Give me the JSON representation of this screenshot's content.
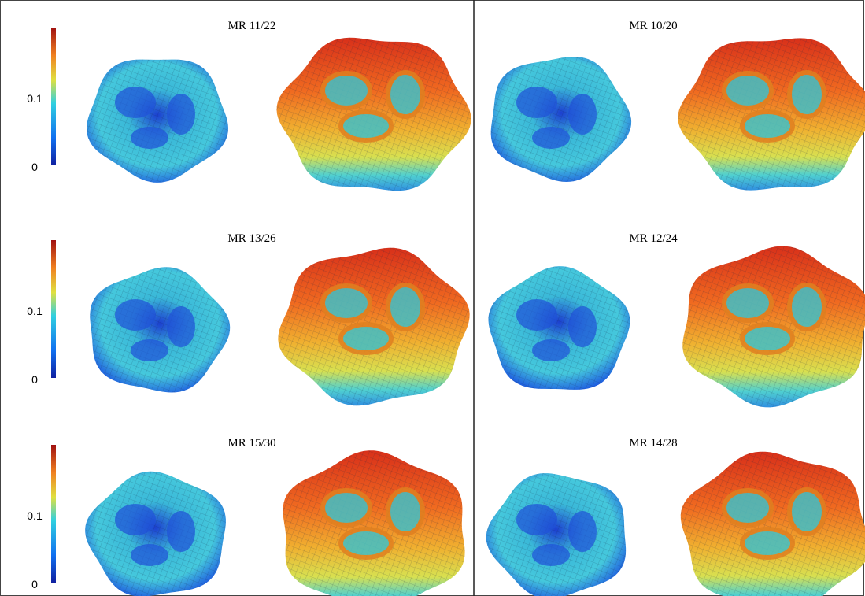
{
  "panels": [
    {
      "label": "MR 11/22"
    },
    {
      "label": "MR 10/20"
    },
    {
      "label": "MR 13/26"
    },
    {
      "label": "MR 12/24"
    },
    {
      "label": "MR 15/30"
    },
    {
      "label": "MR 14/28"
    }
  ],
  "colorbars": [
    {
      "ticks": [
        "0.1",
        "0"
      ]
    },
    {
      "ticks": [
        "0.1",
        "0"
      ]
    },
    {
      "ticks": [
        "0.1",
        "0"
      ]
    }
  ]
}
